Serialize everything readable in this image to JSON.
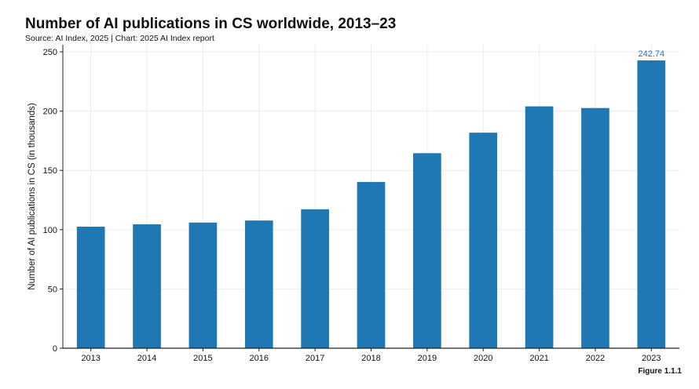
{
  "title": "Number of AI publications in CS worldwide, 2013–23",
  "subtitle": "Source: AI Index, 2025 | Chart: 2025 AI Index report",
  "figure_label": "Figure 1.1.1",
  "colors": {
    "bar": "#1f77b4",
    "data_label": "#1f77b4",
    "grid": "#ececec",
    "axis": "#222222"
  },
  "chart_data": {
    "type": "bar",
    "title": "Number of AI publications in CS worldwide, 2013–23",
    "xlabel": "",
    "ylabel": "Number of AI publications in CS (in thousands)",
    "categories": [
      "2013",
      "2014",
      "2015",
      "2016",
      "2017",
      "2018",
      "2019",
      "2020",
      "2021",
      "2022",
      "2023"
    ],
    "values": [
      102.5,
      104.5,
      106,
      107.7,
      117.2,
      140.2,
      164.5,
      181.8,
      204,
      202.6,
      242.74
    ],
    "ylim": [
      0,
      256
    ],
    "yticks": [
      0,
      50,
      100,
      150,
      200,
      250
    ],
    "data_labels": [
      {
        "category": "2023",
        "text": "242.74"
      }
    ],
    "grid": true,
    "legend": "none"
  }
}
